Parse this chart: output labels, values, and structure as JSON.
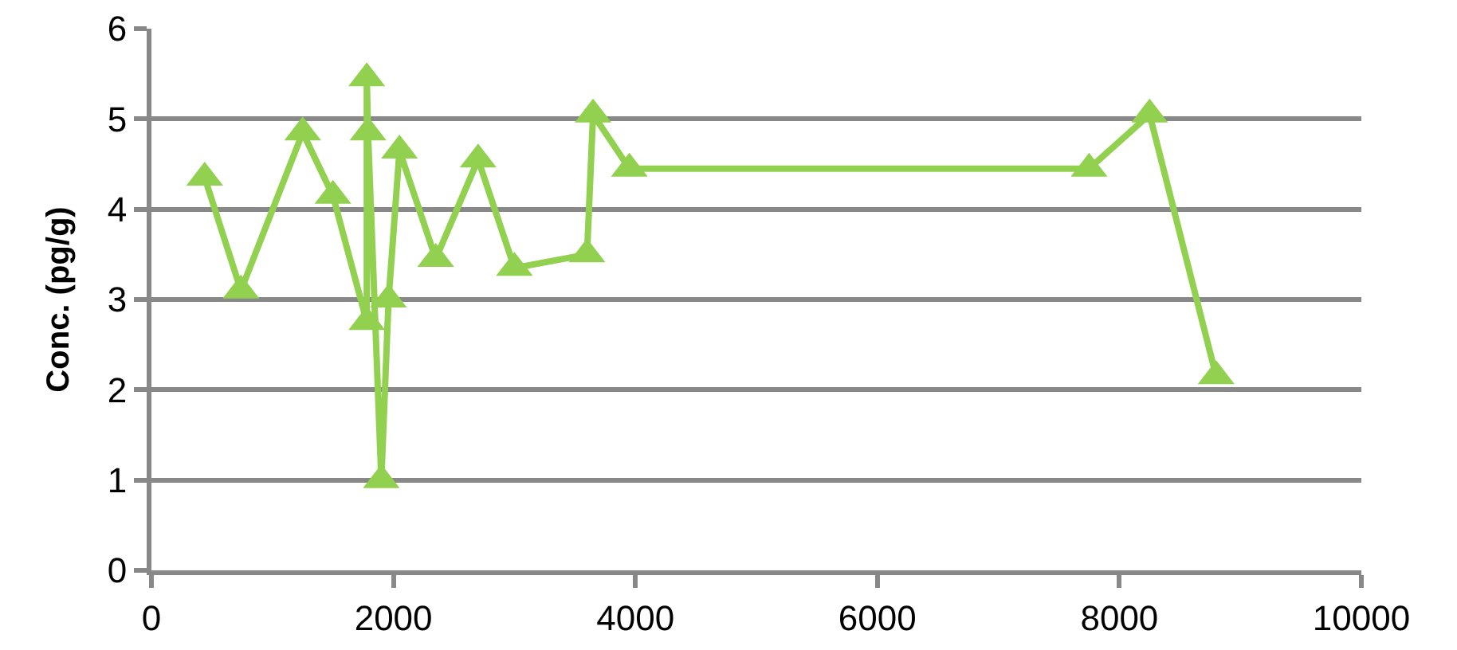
{
  "chart_data": {
    "type": "line",
    "ylabel": "Conc. (pg/g)",
    "x": [
      440,
      740,
      1250,
      1500,
      1780,
      1780,
      1790,
      1900,
      1960,
      2050,
      2350,
      2700,
      3000,
      3600,
      3650,
      3950,
      7750,
      8250,
      8800
    ],
    "series": [
      {
        "color": "#92d050",
        "values": [
          4.35,
          3.1,
          4.85,
          4.15,
          2.75,
          5.45,
          4.85,
          1.0,
          3.0,
          4.65,
          3.45,
          4.55,
          3.35,
          3.5,
          5.05,
          4.45,
          4.45,
          5.05,
          2.15
        ]
      }
    ],
    "xlim": [
      0,
      10000
    ],
    "xticks": [
      0,
      2000,
      4000,
      6000,
      8000,
      10000
    ],
    "ylim": [
      0,
      6
    ],
    "yticks": [
      0,
      1,
      2,
      3,
      4,
      5,
      6
    ],
    "grid": "y",
    "marker": "triangle",
    "line_style": "solid"
  }
}
